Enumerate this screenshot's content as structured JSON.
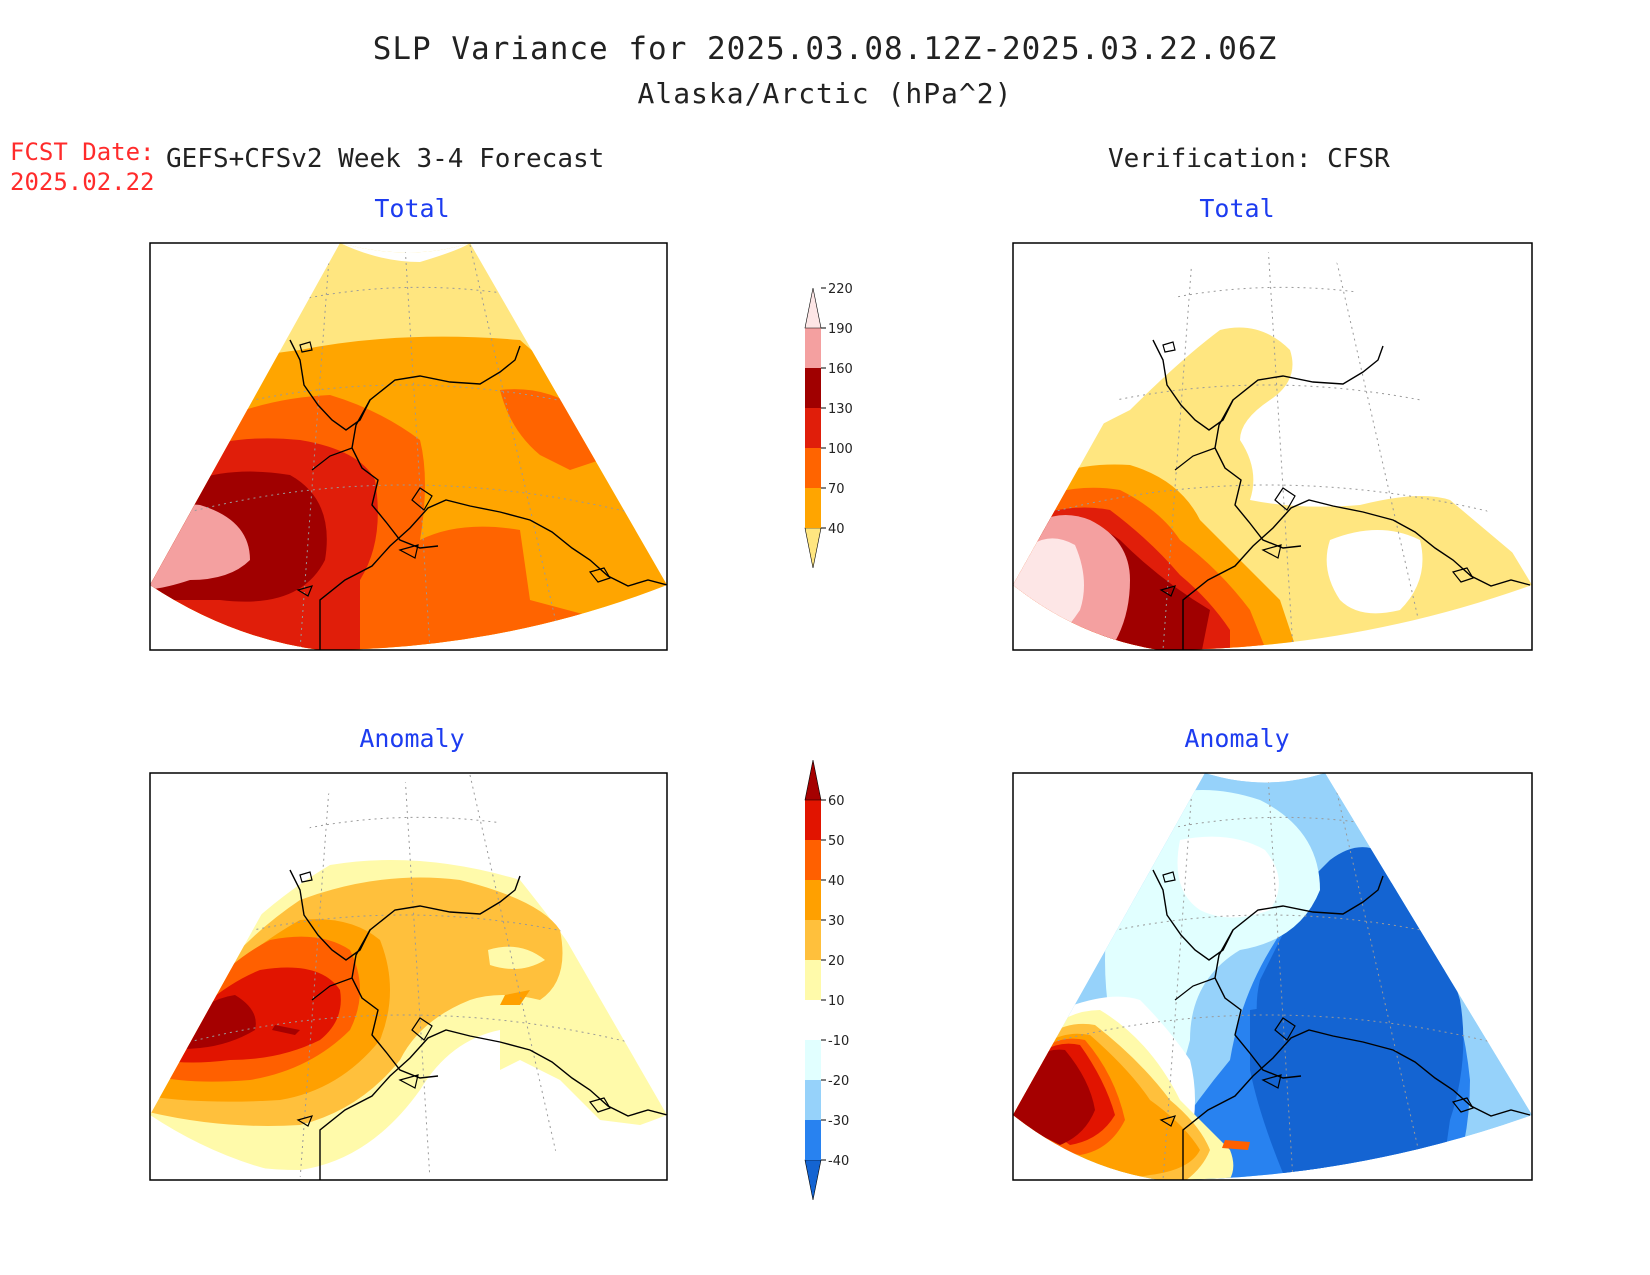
{
  "title": "SLP Variance for 2025.03.08.12Z-2025.03.22.06Z",
  "subtitle": "Alaska/Arctic (hPa^2)",
  "forecast_date_label": "FCST Date:",
  "forecast_date": "2025.02.22",
  "left_column_heading": "GEFS+CFSv2 Week 3-4 Forecast",
  "right_column_heading": "Verification: CFSR",
  "panels": {
    "forecast_total": {
      "title": "Total"
    },
    "verification_total": {
      "title": "Total"
    },
    "forecast_anomaly": {
      "title": "Anomaly"
    },
    "verification_anomaly": {
      "title": "Anomaly"
    }
  },
  "colorbars": {
    "total": {
      "levels": [
        "40",
        "70",
        "100",
        "130",
        "160",
        "190",
        "220"
      ],
      "colors": [
        "#ffe680",
        "#ffa500",
        "#ff6400",
        "#e01e0a",
        "#a00000",
        "#f4a0a0",
        "#fde6e6"
      ]
    },
    "anomaly": {
      "levels": [
        "-40",
        "-30",
        "-20",
        "-10",
        "10",
        "20",
        "30",
        "40",
        "50",
        "60"
      ],
      "colors": [
        "#1464d2",
        "#2882f0",
        "#96d2fa",
        "#e1ffff",
        "#ffffff",
        "#fffaaa",
        "#ffc03c",
        "#ffa000",
        "#ff6000",
        "#e11400",
        "#a50000"
      ]
    }
  }
}
